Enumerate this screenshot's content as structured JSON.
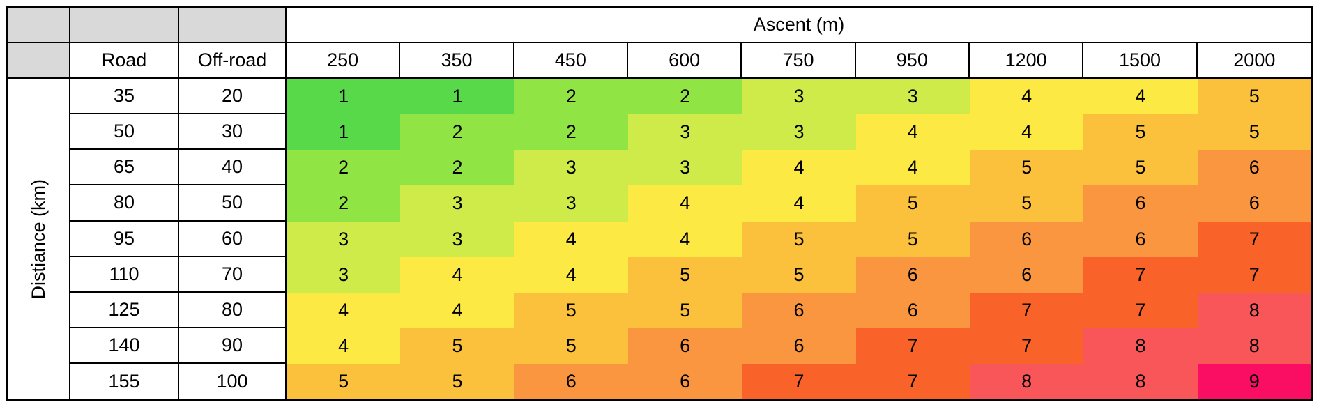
{
  "table": {
    "ascent_header": "Ascent (m)",
    "road_header": "Road",
    "offroad_header": "Off-road",
    "distance_axis_label": "Distiance (km)"
  },
  "colors": {
    "header_gray": "#D9D9D9",
    "border_black": "#000000",
    "text_black": "#000000"
  },
  "chart_data": {
    "type": "heatmap",
    "title": "Ascent (m)",
    "col_axis_label": "Ascent (m)",
    "row_axis_label": "Distiance (km)",
    "row_header_columns": [
      "Road",
      "Off-road"
    ],
    "columns": [
      "250",
      "350",
      "450",
      "600",
      "750",
      "950",
      "1200",
      "1500",
      "2000"
    ],
    "rows": [
      {
        "road": "35",
        "offroad": "20",
        "values": [
          1,
          1,
          2,
          2,
          3,
          3,
          4,
          4,
          5
        ]
      },
      {
        "road": "50",
        "offroad": "30",
        "values": [
          1,
          2,
          2,
          3,
          3,
          4,
          4,
          5,
          5
        ]
      },
      {
        "road": "65",
        "offroad": "40",
        "values": [
          2,
          2,
          3,
          3,
          4,
          4,
          5,
          5,
          6
        ]
      },
      {
        "road": "80",
        "offroad": "50",
        "values": [
          2,
          3,
          3,
          4,
          4,
          5,
          5,
          6,
          6
        ]
      },
      {
        "road": "95",
        "offroad": "60",
        "values": [
          3,
          3,
          4,
          4,
          5,
          5,
          6,
          6,
          7
        ]
      },
      {
        "road": "110",
        "offroad": "70",
        "values": [
          3,
          4,
          4,
          5,
          5,
          6,
          6,
          7,
          7
        ]
      },
      {
        "road": "125",
        "offroad": "80",
        "values": [
          4,
          4,
          5,
          5,
          6,
          6,
          7,
          7,
          8
        ]
      },
      {
        "road": "140",
        "offroad": "90",
        "values": [
          4,
          5,
          5,
          6,
          6,
          7,
          7,
          8,
          8
        ]
      },
      {
        "road": "155",
        "offroad": "100",
        "values": [
          5,
          5,
          6,
          6,
          7,
          7,
          8,
          8,
          9
        ]
      }
    ],
    "value_range": [
      1,
      9
    ],
    "value_colors": {
      "1": "#58D94A",
      "2": "#90E544",
      "3": "#CEEB49",
      "4": "#FDE943",
      "5": "#FBC13D",
      "6": "#F9963F",
      "7": "#F9632A",
      "8": "#F85659",
      "9": "#F90E63"
    }
  }
}
